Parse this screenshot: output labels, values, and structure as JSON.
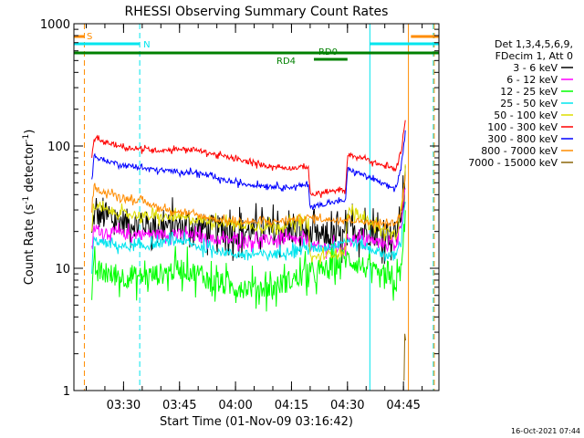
{
  "chart_data": {
    "type": "line",
    "title": "RHESSI Observing Summary Count Rates",
    "xlabel": "Start Time (01-Nov-09 03:16:42)",
    "ylabel_main": "Count Rate (s",
    "ylabel_sup1": "-1",
    "ylabel_mid": " detector",
    "ylabel_sup2": "-1",
    "ylabel_end": ")",
    "y_scale": "log",
    "ylim": [
      1,
      1000
    ],
    "xlim": [
      "03:16:42",
      "04:54:30"
    ],
    "x_ticks": [
      "03:30",
      "03:45",
      "04:00",
      "04:15",
      "04:30",
      "04:45"
    ],
    "y_ticks": [
      "1",
      "10",
      "100",
      "1000"
    ],
    "timestamp": "16-Oct-2021 07:44",
    "legend": {
      "placement": "right",
      "header": [
        "Det 1,3,4,5,6,9,",
        "FDecim 1, Att 0"
      ]
    },
    "flags": [
      {
        "label": "S",
        "color": "#ff8c00",
        "start": "03:16:42",
        "end": "03:19:30"
      },
      {
        "label": "S",
        "color": "#ff8c00",
        "start": "04:47:00",
        "end": "04:54:30"
      },
      {
        "label": "N",
        "color": "#00e5ee",
        "start": "03:16:42",
        "end": "03:34:20"
      },
      {
        "label": "",
        "color": "#00e5ee",
        "start": "04:36:00",
        "end": "04:54:30"
      },
      {
        "label": "",
        "color": "#008000",
        "start": "03:16:42",
        "end": "04:54:30"
      },
      {
        "label": "RD0",
        "color": "#008000",
        "start": "04:21:00",
        "end": "04:30:00"
      },
      {
        "label": "RD4",
        "color": "#008000",
        "start": "",
        "end": ""
      }
    ],
    "vlines": [
      {
        "time": "03:16:42",
        "color": "#00e5ee",
        "style": "solid"
      },
      {
        "time": "03:19:30",
        "color": "#ff8c00",
        "style": "dashed"
      },
      {
        "time": "03:34:20",
        "color": "#00e5ee",
        "style": "dashed"
      },
      {
        "time": "04:36:00",
        "color": "#00e5ee",
        "style": "solid"
      },
      {
        "time": "04:46:20",
        "color": "#ff8c00",
        "style": "solid"
      },
      {
        "time": "04:53:00",
        "color": "#00e5ee",
        "style": "dashed"
      },
      {
        "time": "04:53:00",
        "color": "#ff8c00",
        "style": "dashed"
      }
    ],
    "series": [
      {
        "name": "3 - 6 keV",
        "color": "#000000",
        "noise": 0.25,
        "x": [
          "03:21:30",
          "03:22:00",
          "03:25:00",
          "03:30:00",
          "03:35:00",
          "03:40:00",
          "03:45:00",
          "03:50:00",
          "03:55:00",
          "04:00:00",
          "04:05:00",
          "04:10:00",
          "04:15:00",
          "04:19:30",
          "04:20:00",
          "04:25:00",
          "04:29:30",
          "04:30:00",
          "04:35:00",
          "04:40:00",
          "04:43:00",
          "04:44:30",
          "04:45:30"
        ],
        "y": [
          18,
          27,
          26,
          24,
          23,
          22,
          22,
          22,
          21,
          20,
          20,
          20,
          20,
          20,
          18,
          18,
          18,
          22,
          20,
          19,
          19,
          30,
          55
        ]
      },
      {
        "name": "6 - 12 keV",
        "color": "#ff00ff",
        "noise": 0.1,
        "x": [
          "03:21:30",
          "03:22:00",
          "03:25:00",
          "03:30:00",
          "03:35:00",
          "03:40:00",
          "03:45:00",
          "03:50:00",
          "03:55:00",
          "04:00:00",
          "04:05:00",
          "04:10:00",
          "04:15:00",
          "04:19:30",
          "04:20:00",
          "04:25:00",
          "04:29:30",
          "04:30:00",
          "04:35:00",
          "04:40:00",
          "04:43:00",
          "04:44:30",
          "04:45:30"
        ],
        "y": [
          14,
          21,
          20,
          19,
          19,
          19,
          19,
          18,
          17,
          17,
          17,
          17,
          17,
          17,
          15,
          15,
          15,
          18,
          17,
          16,
          16,
          25,
          48
        ]
      },
      {
        "name": "12 - 25 keV",
        "color": "#00ff00",
        "noise": 0.2,
        "x": [
          "03:21:30",
          "03:22:00",
          "03:25:00",
          "03:30:00",
          "03:35:00",
          "03:40:00",
          "03:45:00",
          "03:50:00",
          "03:55:00",
          "04:00:00",
          "04:05:00",
          "04:10:00",
          "04:15:00",
          "04:19:30",
          "04:20:00",
          "04:25:00",
          "04:29:30",
          "04:30:00",
          "04:35:00",
          "04:40:00",
          "04:43:00",
          "04:44:30",
          "04:45:30"
        ],
        "y": [
          5,
          10,
          9,
          8.5,
          8.5,
          9,
          10,
          9,
          7.5,
          7,
          7,
          7,
          8,
          9,
          8.5,
          10,
          12,
          12,
          10,
          8,
          7.5,
          10,
          30
        ]
      },
      {
        "name": "25 - 50 keV",
        "color": "#00e5ee",
        "noise": 0.08,
        "x": [
          "03:21:30",
          "03:22:00",
          "03:25:00",
          "03:30:00",
          "03:35:00",
          "03:40:00",
          "03:45:00",
          "03:50:00",
          "03:55:00",
          "04:00:00",
          "04:05:00",
          "04:10:00",
          "04:15:00",
          "04:19:30",
          "04:20:00",
          "04:25:00",
          "04:29:30",
          "04:30:00",
          "04:35:00",
          "04:40:00",
          "04:43:00",
          "04:44:30",
          "04:45:30"
        ],
        "y": [
          9,
          17,
          16,
          15,
          15,
          16,
          17,
          15,
          14,
          13,
          13,
          13,
          14,
          15,
          14,
          15,
          17,
          17,
          15,
          13,
          12.5,
          18,
          40
        ]
      },
      {
        "name": "50 - 100 keV",
        "color": "#dddd00",
        "noise": 0.08,
        "x": [
          "03:21:30",
          "03:22:00",
          "03:25:00",
          "03:30:00",
          "03:35:00",
          "03:40:00",
          "03:45:00",
          "03:50:00",
          "03:55:00",
          "04:00:00",
          "04:05:00",
          "04:10:00",
          "04:15:00",
          "04:19:30",
          "04:20:00",
          "04:25:00",
          "04:29:30",
          "04:30:00",
          "04:35:00",
          "04:40:00",
          "04:43:00",
          "04:44:30",
          "04:45:30"
        ],
        "y": [
          20,
          32,
          30,
          28,
          27,
          26,
          26,
          25,
          24,
          23,
          22,
          22,
          23,
          25,
          12,
          13,
          14,
          30,
          25,
          20,
          18,
          30,
          60
        ]
      },
      {
        "name": "100 - 300 keV",
        "color": "#ff0000",
        "noise": 0.04,
        "x": [
          "03:21:30",
          "03:22:00",
          "03:25:00",
          "03:30:00",
          "03:35:00",
          "03:40:00",
          "03:45:00",
          "03:50:00",
          "03:55:00",
          "04:00:00",
          "04:05:00",
          "04:10:00",
          "04:15:00",
          "04:19:30",
          "04:20:00",
          "04:25:00",
          "04:29:30",
          "04:30:00",
          "04:35:00",
          "04:40:00",
          "04:43:00",
          "04:44:30",
          "04:45:30"
        ],
        "y": [
          75,
          115,
          108,
          98,
          94,
          92,
          95,
          92,
          85,
          78,
          72,
          68,
          66,
          68,
          40,
          42,
          44,
          85,
          78,
          68,
          65,
          95,
          170
        ]
      },
      {
        "name": "300 - 800 keV",
        "color": "#0000ff",
        "noise": 0.04,
        "x": [
          "03:21:30",
          "03:22:00",
          "03:25:00",
          "03:30:00",
          "03:35:00",
          "03:40:00",
          "03:45:00",
          "03:50:00",
          "03:55:00",
          "04:00:00",
          "04:05:00",
          "04:10:00",
          "04:15:00",
          "04:19:30",
          "04:20:00",
          "04:25:00",
          "04:29:30",
          "04:30:00",
          "04:35:00",
          "04:40:00",
          "04:43:00",
          "04:44:30",
          "04:45:30"
        ],
        "y": [
          50,
          82,
          76,
          70,
          66,
          63,
          62,
          60,
          54,
          50,
          48,
          47,
          46,
          48,
          32,
          34,
          36,
          65,
          57,
          48,
          45,
          70,
          130
        ]
      },
      {
        "name": "800 - 7000 keV",
        "color": "#ff8c00",
        "noise": 0.05,
        "x": [
          "03:21:30",
          "03:22:00",
          "03:25:00",
          "03:30:00",
          "03:35:00",
          "03:40:00",
          "03:45:00",
          "03:50:00",
          "03:55:00",
          "04:00:00",
          "04:05:00",
          "04:10:00",
          "04:15:00",
          "04:19:30",
          "04:20:00",
          "04:25:00",
          "04:29:30",
          "04:30:00",
          "04:35:00",
          "04:40:00",
          "04:43:00",
          "04:44:30",
          "04:45:30"
        ],
        "y": [
          28,
          45,
          42,
          38,
          35,
          31,
          29,
          27,
          25,
          24,
          24,
          24,
          25,
          26,
          26,
          25,
          25,
          25,
          24,
          23,
          23,
          30,
          60
        ]
      },
      {
        "name": "7000 - 15000 keV",
        "color": "#8b6508",
        "noise": 0.3,
        "x": [
          "04:45:10",
          "04:45:20",
          "04:45:30",
          "04:45:40"
        ],
        "y": [
          1.2,
          2.5,
          3.0,
          1.5
        ]
      }
    ]
  }
}
